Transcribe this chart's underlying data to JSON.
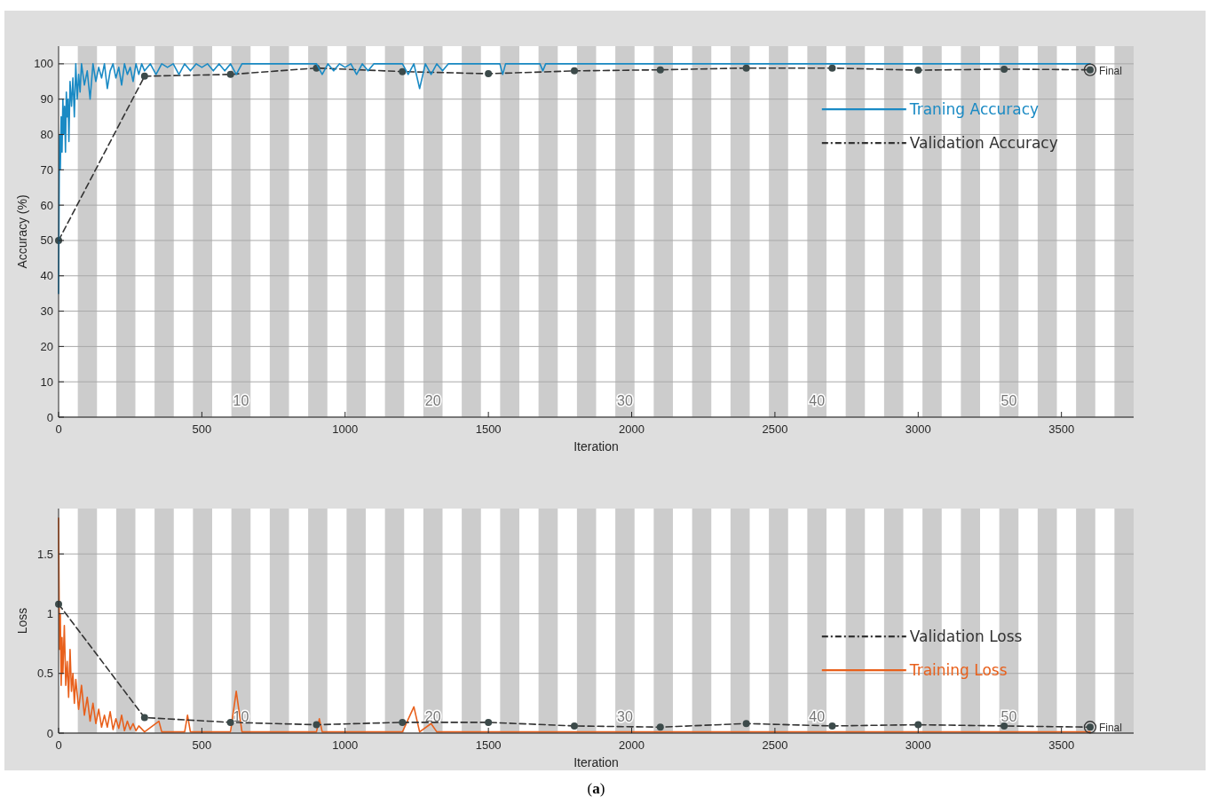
{
  "chart_data": [
    {
      "type": "line",
      "xlabel": "Iteration",
      "ylabel": "Accuracy (%)",
      "xlim": [
        0,
        3752
      ],
      "xticks": [
        0,
        500,
        1000,
        1500,
        2000,
        2500,
        3000,
        3500
      ],
      "ylim": [
        0,
        105
      ],
      "yticks": [
        0,
        10,
        20,
        30,
        40,
        50,
        60,
        70,
        80,
        90,
        100
      ],
      "grid": "y",
      "legend": "top right",
      "bands": [
        {
          "axis": "x",
          "from": 67,
          "to": 134,
          "color": "#cccccc"
        },
        {
          "axis": "x",
          "from": 201,
          "to": 268,
          "color": "#cccccc"
        },
        {
          "axis": "x",
          "from": 335,
          "to": 402,
          "color": "#cccccc"
        },
        {
          "axis": "x",
          "from": 469,
          "to": 536,
          "color": "#cccccc"
        },
        {
          "axis": "x",
          "from": 603,
          "to": 670,
          "color": "#cccccc"
        },
        {
          "axis": "x",
          "from": 737,
          "to": 804,
          "color": "#cccccc"
        },
        {
          "axis": "x",
          "from": 871,
          "to": 938,
          "color": "#cccccc"
        },
        {
          "axis": "x",
          "from": 1005,
          "to": 1072,
          "color": "#cccccc"
        },
        {
          "axis": "x",
          "from": 1139,
          "to": 1206,
          "color": "#cccccc"
        },
        {
          "axis": "x",
          "from": 1273,
          "to": 1340,
          "color": "#cccccc"
        },
        {
          "axis": "x",
          "from": 1407,
          "to": 1474,
          "color": "#cccccc"
        },
        {
          "axis": "x",
          "from": 1541,
          "to": 1608,
          "color": "#cccccc"
        },
        {
          "axis": "x",
          "from": 1675,
          "to": 1742,
          "color": "#cccccc"
        },
        {
          "axis": "x",
          "from": 1809,
          "to": 1876,
          "color": "#cccccc"
        },
        {
          "axis": "x",
          "from": 1943,
          "to": 2010,
          "color": "#cccccc"
        },
        {
          "axis": "x",
          "from": 2077,
          "to": 2144,
          "color": "#cccccc"
        },
        {
          "axis": "x",
          "from": 2211,
          "to": 2278,
          "color": "#cccccc"
        },
        {
          "axis": "x",
          "from": 2345,
          "to": 2412,
          "color": "#cccccc"
        },
        {
          "axis": "x",
          "from": 2479,
          "to": 2546,
          "color": "#cccccc"
        },
        {
          "axis": "x",
          "from": 2613,
          "to": 2680,
          "color": "#cccccc"
        },
        {
          "axis": "x",
          "from": 2747,
          "to": 2814,
          "color": "#cccccc"
        },
        {
          "axis": "x",
          "from": 2881,
          "to": 2948,
          "color": "#cccccc"
        },
        {
          "axis": "x",
          "from": 3015,
          "to": 3082,
          "color": "#cccccc"
        },
        {
          "axis": "x",
          "from": 3149,
          "to": 3216,
          "color": "#cccccc"
        },
        {
          "axis": "x",
          "from": 3283,
          "to": 3350,
          "color": "#cccccc"
        },
        {
          "axis": "x",
          "from": 3417,
          "to": 3484,
          "color": "#cccccc"
        },
        {
          "axis": "x",
          "from": 3551,
          "to": 3618,
          "color": "#cccccc"
        },
        {
          "axis": "x",
          "from": 3685,
          "to": 3752,
          "color": "#cccccc"
        }
      ],
      "annotations": [
        "10",
        "20",
        "30",
        "40",
        "50",
        {
          "text": "Final",
          "x": 3600,
          "y": 98.3
        }
      ],
      "series": [
        {
          "name": "Traning Accuracy",
          "color": "#1a8ac4",
          "marker": "none",
          "line_style": "solid",
          "x": [
            0,
            3,
            6,
            9,
            12,
            15,
            18,
            21,
            24,
            27,
            30,
            33,
            36,
            40,
            45,
            50,
            55,
            60,
            65,
            70,
            75,
            80,
            90,
            100,
            110,
            120,
            130,
            140,
            150,
            160,
            170,
            180,
            190,
            200,
            210,
            220,
            230,
            240,
            250,
            260,
            270,
            280,
            290,
            300,
            320,
            340,
            360,
            380,
            400,
            420,
            440,
            460,
            480,
            500,
            520,
            540,
            560,
            580,
            600,
            620,
            640,
            700,
            900,
            920,
            940,
            960,
            980,
            1000,
            1020,
            1040,
            1060,
            1080,
            1100,
            1200,
            1220,
            1240,
            1260,
            1280,
            1300,
            1320,
            1340,
            1360,
            1540,
            1550,
            1560,
            1680,
            1690,
            1700,
            3600
          ],
          "values": [
            35,
            80,
            70,
            85,
            75,
            90,
            80,
            88,
            75,
            92,
            85,
            90,
            78,
            95,
            88,
            96,
            85,
            100,
            90,
            97,
            92,
            100,
            94,
            98,
            90,
            100,
            95,
            99,
            96,
            100,
            93,
            98,
            100,
            96,
            99,
            94,
            100,
            97,
            99,
            95,
            100,
            97,
            100,
            98,
            100,
            97,
            100,
            99,
            100,
            97,
            100,
            98,
            100,
            99,
            100,
            98,
            100,
            98,
            100,
            97,
            100,
            100,
            100,
            97,
            100,
            98,
            100,
            99,
            100,
            97,
            100,
            98,
            100,
            100,
            97,
            100,
            93,
            100,
            97,
            100,
            98,
            100,
            100,
            97,
            100,
            100,
            98,
            100,
            100
          ]
        },
        {
          "name": "Validation Accuracy",
          "color": "#333333",
          "marker": "circle",
          "line_style": "dashed",
          "x": [
            0,
            300,
            600,
            900,
            1200,
            1500,
            1800,
            2100,
            2400,
            2700,
            3000,
            3300,
            3600
          ],
          "values": [
            50,
            96.5,
            97,
            98.8,
            97.8,
            97.2,
            98,
            98.3,
            98.8,
            98.8,
            98.2,
            98.5,
            98.3
          ]
        }
      ]
    },
    {
      "type": "line",
      "xlabel": "Iteration",
      "ylabel": "Loss",
      "xlim": [
        0,
        3752
      ],
      "xticks": [
        0,
        500,
        1000,
        1500,
        2000,
        2500,
        3000,
        3500
      ],
      "ylim": [
        0,
        1.88
      ],
      "yticks": [
        0,
        0.5,
        1,
        1.5
      ],
      "grid": "y",
      "legend": "right",
      "bands": [
        {
          "axis": "x",
          "from": 67,
          "to": 134,
          "color": "#cccccc"
        },
        {
          "axis": "x",
          "from": 201,
          "to": 268,
          "color": "#cccccc"
        },
        {
          "axis": "x",
          "from": 335,
          "to": 402,
          "color": "#cccccc"
        },
        {
          "axis": "x",
          "from": 469,
          "to": 536,
          "color": "#cccccc"
        },
        {
          "axis": "x",
          "from": 603,
          "to": 670,
          "color": "#cccccc"
        },
        {
          "axis": "x",
          "from": 737,
          "to": 804,
          "color": "#cccccc"
        },
        {
          "axis": "x",
          "from": 871,
          "to": 938,
          "color": "#cccccc"
        },
        {
          "axis": "x",
          "from": 1005,
          "to": 1072,
          "color": "#cccccc"
        },
        {
          "axis": "x",
          "from": 1139,
          "to": 1206,
          "color": "#cccccc"
        },
        {
          "axis": "x",
          "from": 1273,
          "to": 1340,
          "color": "#cccccc"
        },
        {
          "axis": "x",
          "from": 1407,
          "to": 1474,
          "color": "#cccccc"
        },
        {
          "axis": "x",
          "from": 1541,
          "to": 1608,
          "color": "#cccccc"
        },
        {
          "axis": "x",
          "from": 1675,
          "to": 1742,
          "color": "#cccccc"
        },
        {
          "axis": "x",
          "from": 1809,
          "to": 1876,
          "color": "#cccccc"
        },
        {
          "axis": "x",
          "from": 1943,
          "to": 2010,
          "color": "#cccccc"
        },
        {
          "axis": "x",
          "from": 2077,
          "to": 2144,
          "color": "#cccccc"
        },
        {
          "axis": "x",
          "from": 2211,
          "to": 2278,
          "color": "#cccccc"
        },
        {
          "axis": "x",
          "from": 2345,
          "to": 2412,
          "color": "#cccccc"
        },
        {
          "axis": "x",
          "from": 2479,
          "to": 2546,
          "color": "#cccccc"
        },
        {
          "axis": "x",
          "from": 2613,
          "to": 2680,
          "color": "#cccccc"
        },
        {
          "axis": "x",
          "from": 2747,
          "to": 2814,
          "color": "#cccccc"
        },
        {
          "axis": "x",
          "from": 2881,
          "to": 2948,
          "color": "#cccccc"
        },
        {
          "axis": "x",
          "from": 3015,
          "to": 3082,
          "color": "#cccccc"
        },
        {
          "axis": "x",
          "from": 3149,
          "to": 3216,
          "color": "#cccccc"
        },
        {
          "axis": "x",
          "from": 3283,
          "to": 3350,
          "color": "#cccccc"
        },
        {
          "axis": "x",
          "from": 3417,
          "to": 3484,
          "color": "#cccccc"
        },
        {
          "axis": "x",
          "from": 3551,
          "to": 3618,
          "color": "#cccccc"
        },
        {
          "axis": "x",
          "from": 3685,
          "to": 3752,
          "color": "#cccccc"
        }
      ],
      "annotations": [
        "10",
        "20",
        "30",
        "40",
        "50",
        {
          "text": "Final",
          "x": 3600,
          "y": 0.05
        },
        "(a)"
      ],
      "series": [
        {
          "name": "Validation Loss",
          "color": "#333333",
          "marker": "circle",
          "line_style": "dashed",
          "x": [
            0,
            300,
            600,
            900,
            1200,
            1500,
            1800,
            2100,
            2400,
            2700,
            3000,
            3300,
            3600
          ],
          "values": [
            1.08,
            0.13,
            0.09,
            0.07,
            0.09,
            0.09,
            0.06,
            0.05,
            0.08,
            0.06,
            0.07,
            0.06,
            0.05
          ]
        },
        {
          "name": "Training Loss",
          "color": "#e8601c",
          "marker": "none",
          "line_style": "solid",
          "x": [
            0,
            3,
            6,
            9,
            12,
            15,
            20,
            25,
            30,
            35,
            40,
            45,
            50,
            55,
            60,
            70,
            80,
            90,
            100,
            110,
            120,
            130,
            140,
            150,
            160,
            170,
            180,
            190,
            200,
            210,
            220,
            230,
            240,
            250,
            260,
            270,
            280,
            300,
            350,
            360,
            440,
            450,
            460,
            600,
            620,
            640,
            900,
            910,
            920,
            1200,
            1240,
            1260,
            1300,
            1320,
            3600
          ],
          "values": [
            1.8,
            0.7,
            1.0,
            0.4,
            0.8,
            0.5,
            0.9,
            0.4,
            0.6,
            0.3,
            0.7,
            0.35,
            0.5,
            0.25,
            0.45,
            0.2,
            0.4,
            0.15,
            0.3,
            0.1,
            0.25,
            0.08,
            0.2,
            0.05,
            0.15,
            0.05,
            0.18,
            0.03,
            0.12,
            0.04,
            0.15,
            0.02,
            0.1,
            0.03,
            0.08,
            0.02,
            0.06,
            0.01,
            0.1,
            0.01,
            0.01,
            0.15,
            0.01,
            0.01,
            0.35,
            0.01,
            0.01,
            0.12,
            0.01,
            0.01,
            0.22,
            0.01,
            0.08,
            0.01,
            0.01
          ]
        }
      ]
    }
  ]
}
